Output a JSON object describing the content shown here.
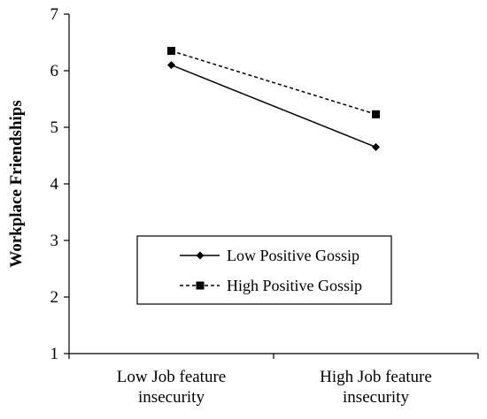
{
  "chart_data": {
    "type": "line",
    "title": "",
    "xlabel": "",
    "ylabel": "Workplace Friendships",
    "categories": [
      [
        "Low Job feature",
        "insecurity"
      ],
      [
        "High Job feature",
        "insecurity"
      ]
    ],
    "ylim": [
      1,
      7
    ],
    "yticks": [
      1,
      2,
      3,
      4,
      5,
      6,
      7
    ],
    "grid": false,
    "legend_position": "center",
    "series": [
      {
        "name": "Low Positive Gossip",
        "values": [
          6.1,
          4.65
        ],
        "line_style": "solid",
        "marker": "diamond"
      },
      {
        "name": "High Positive Gossip",
        "values": [
          6.35,
          5.23
        ],
        "line_style": "dashed",
        "marker": "square"
      }
    ]
  }
}
